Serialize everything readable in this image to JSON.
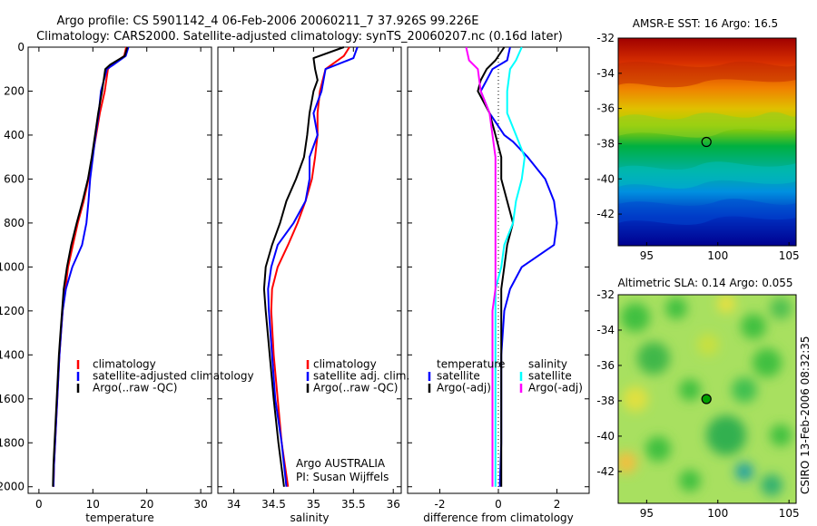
{
  "title_line1": "Argo profile: CS 5901142_4 06-Feb-2006 20060211_7 37.926S 99.226E",
  "title_line2": "Climatology: CARS2000. Satellite-adjusted climatology: synTS_20060207.nc (0.16d later)",
  "credit": "Argo AUSTRALIA",
  "pi": "PI: Susan Wijffels",
  "side_stamp": "CSIRO 13-Feb-2006 08:32:35",
  "colors": {
    "climatology": "#ff0000",
    "satellite": "#0000ff",
    "argo": "#000000",
    "sat_sal": "#00ffff",
    "argo_sal": "#ff00ff"
  },
  "chart_data": [
    {
      "type": "line",
      "xlabel": "temperature",
      "ylim": [
        2030,
        0
      ],
      "xlim": [
        -2,
        32
      ],
      "xticks": [
        0,
        10,
        20,
        30
      ],
      "yticks": [
        0,
        200,
        400,
        600,
        800,
        1000,
        1200,
        1400,
        1600,
        1800,
        2000
      ],
      "legend": [
        "climatology",
        "satellite-adjusted climatology",
        "Argo(..raw -QC)"
      ],
      "series": [
        {
          "name": "climatology",
          "color": "#ff0000",
          "points": [
            [
              16.2,
              0
            ],
            [
              15.8,
              40
            ],
            [
              13.5,
              80
            ],
            [
              12.8,
              100
            ],
            [
              12.2,
              200
            ],
            [
              11.3,
              300
            ],
            [
              10.6,
              400
            ],
            [
              9.9,
              500
            ],
            [
              9.2,
              600
            ],
            [
              8.3,
              700
            ],
            [
              7.2,
              800
            ],
            [
              6.3,
              900
            ],
            [
              5.4,
              1000
            ],
            [
              4.9,
              1100
            ],
            [
              4.4,
              1200
            ],
            [
              4.1,
              1300
            ],
            [
              3.8,
              1400
            ],
            [
              3.6,
              1500
            ],
            [
              3.4,
              1600
            ],
            [
              3.2,
              1700
            ],
            [
              3.0,
              1800
            ],
            [
              2.8,
              1900
            ],
            [
              2.7,
              2000
            ]
          ]
        },
        {
          "name": "satellite-adjusted climatology",
          "color": "#0000ff",
          "points": [
            [
              16.6,
              0
            ],
            [
              16.1,
              40
            ],
            [
              13.8,
              80
            ],
            [
              12.6,
              100
            ],
            [
              11.5,
              200
            ],
            [
              11.1,
              300
            ],
            [
              10.5,
              400
            ],
            [
              10.0,
              500
            ],
            [
              9.5,
              600
            ],
            [
              9.2,
              700
            ],
            [
              8.8,
              800
            ],
            [
              8.0,
              900
            ],
            [
              6.2,
              1000
            ],
            [
              5.0,
              1100
            ],
            [
              4.4,
              1200
            ],
            [
              4.1,
              1300
            ],
            [
              3.8,
              1400
            ],
            [
              3.6,
              1500
            ],
            [
              3.4,
              1600
            ],
            [
              3.2,
              1700
            ],
            [
              3.0,
              1800
            ],
            [
              2.8,
              1900
            ],
            [
              2.7,
              2000
            ]
          ]
        },
        {
          "name": "Argo(..raw -QC)",
          "color": "#000000",
          "points": [
            [
              16.4,
              0
            ],
            [
              15.9,
              40
            ],
            [
              13.2,
              80
            ],
            [
              12.3,
              100
            ],
            [
              11.7,
              200
            ],
            [
              11.0,
              300
            ],
            [
              10.4,
              400
            ],
            [
              9.8,
              500
            ],
            [
              9.1,
              600
            ],
            [
              8.1,
              700
            ],
            [
              7.0,
              800
            ],
            [
              6.0,
              900
            ],
            [
              5.2,
              1000
            ],
            [
              4.6,
              1100
            ],
            [
              4.3,
              1200
            ],
            [
              4.0,
              1300
            ],
            [
              3.7,
              1400
            ],
            [
              3.5,
              1500
            ],
            [
              3.3,
              1600
            ],
            [
              3.1,
              1700
            ],
            [
              2.9,
              1800
            ],
            [
              2.7,
              1900
            ],
            [
              2.6,
              2000
            ]
          ]
        }
      ]
    },
    {
      "type": "line",
      "xlabel": "salinity",
      "ylim": [
        2030,
        0
      ],
      "xlim": [
        33.8,
        36.1
      ],
      "xticks": [
        34,
        34.5,
        35,
        35.5,
        36
      ],
      "tick_labels": [
        "34",
        "34.5",
        "35",
        "35.5",
        "36"
      ],
      "legend": [
        "climatology",
        "satellite adj. clim.",
        "Argo(..raw -QC)"
      ],
      "series": [
        {
          "name": "climatology",
          "color": "#ff0000",
          "points": [
            [
              35.45,
              0
            ],
            [
              35.38,
              40
            ],
            [
              35.15,
              100
            ],
            [
              35.08,
              200
            ],
            [
              35.05,
              300
            ],
            [
              35.05,
              400
            ],
            [
              35.02,
              500
            ],
            [
              34.98,
              600
            ],
            [
              34.9,
              700
            ],
            [
              34.8,
              800
            ],
            [
              34.68,
              900
            ],
            [
              34.55,
              1000
            ],
            [
              34.48,
              1100
            ],
            [
              34.47,
              1200
            ],
            [
              34.5,
              1400
            ],
            [
              34.55,
              1600
            ],
            [
              34.6,
              1800
            ],
            [
              34.68,
              2000
            ]
          ]
        },
        {
          "name": "satellite adj. clim.",
          "color": "#0000ff",
          "points": [
            [
              35.55,
              0
            ],
            [
              35.5,
              50
            ],
            [
              35.15,
              100
            ],
            [
              35.1,
              200
            ],
            [
              35.0,
              300
            ],
            [
              35.05,
              400
            ],
            [
              34.95,
              500
            ],
            [
              34.95,
              600
            ],
            [
              34.9,
              700
            ],
            [
              34.75,
              800
            ],
            [
              34.55,
              900
            ],
            [
              34.47,
              1000
            ],
            [
              34.43,
              1100
            ],
            [
              34.44,
              1200
            ],
            [
              34.48,
              1400
            ],
            [
              34.52,
              1600
            ],
            [
              34.6,
              1800
            ],
            [
              34.66,
              2000
            ]
          ]
        },
        {
          "name": "Argo(..raw -QC)",
          "color": "#000000",
          "points": [
            [
              35.38,
              0
            ],
            [
              35.0,
              50
            ],
            [
              35.02,
              100
            ],
            [
              35.05,
              150
            ],
            [
              35.0,
              200
            ],
            [
              34.95,
              300
            ],
            [
              34.92,
              400
            ],
            [
              34.88,
              500
            ],
            [
              34.78,
              600
            ],
            [
              34.66,
              700
            ],
            [
              34.58,
              800
            ],
            [
              34.48,
              900
            ],
            [
              34.4,
              1000
            ],
            [
              34.38,
              1100
            ],
            [
              34.4,
              1200
            ],
            [
              34.45,
              1400
            ],
            [
              34.5,
              1600
            ],
            [
              34.56,
              1800
            ],
            [
              34.63,
              2000
            ]
          ]
        }
      ]
    },
    {
      "type": "line",
      "xlabel": "difference from climatology",
      "ylim": [
        2030,
        0
      ],
      "xlim": [
        -3.1,
        3.1
      ],
      "xticks": [
        -2,
        0,
        2
      ],
      "legend_groups": {
        "temperature": [
          "satellite",
          "Argo(-adj)"
        ],
        "salinity": [
          "satellite",
          "Argo(-adj)"
        ]
      },
      "series": [
        {
          "name": "temperature satellite",
          "color": "#0000ff",
          "points": [
            [
              0.4,
              0
            ],
            [
              0.3,
              60
            ],
            [
              -0.2,
              100
            ],
            [
              -0.4,
              150
            ],
            [
              -0.6,
              200
            ],
            [
              -0.3,
              300
            ],
            [
              0.2,
              400
            ],
            [
              0.5,
              430
            ],
            [
              1.0,
              500
            ],
            [
              1.6,
              600
            ],
            [
              1.9,
              700
            ],
            [
              2.0,
              800
            ],
            [
              1.9,
              900
            ],
            [
              0.8,
              1000
            ],
            [
              0.4,
              1100
            ],
            [
              0.2,
              1200
            ],
            [
              0.1,
              1400
            ],
            [
              0.1,
              1600
            ],
            [
              0.1,
              1800
            ],
            [
              0.05,
              2000
            ]
          ]
        },
        {
          "name": "temperature Argo(-adj)",
          "color": "#000000",
          "points": [
            [
              0.2,
              0
            ],
            [
              -0.1,
              60
            ],
            [
              -0.4,
              100
            ],
            [
              -0.6,
              150
            ],
            [
              -0.7,
              200
            ],
            [
              -0.3,
              300
            ],
            [
              -0.1,
              400
            ],
            [
              0.1,
              500
            ],
            [
              0.1,
              600
            ],
            [
              0.3,
              700
            ],
            [
              0.5,
              800
            ],
            [
              0.3,
              900
            ],
            [
              0.2,
              1000
            ],
            [
              0.1,
              1100
            ],
            [
              0.1,
              1200
            ],
            [
              0.1,
              1400
            ],
            [
              0.1,
              1600
            ],
            [
              0.1,
              1800
            ],
            [
              0.1,
              2000
            ]
          ]
        },
        {
          "name": "salinity satellite",
          "color": "#00ffff",
          "points": [
            [
              0.8,
              0
            ],
            [
              0.6,
              60
            ],
            [
              0.4,
              100
            ],
            [
              0.3,
              200
            ],
            [
              0.3,
              300
            ],
            [
              0.6,
              400
            ],
            [
              0.9,
              500
            ],
            [
              0.8,
              600
            ],
            [
              0.6,
              700
            ],
            [
              0.5,
              800
            ],
            [
              0.2,
              900
            ],
            [
              0.1,
              1000
            ],
            [
              -0.1,
              1100
            ],
            [
              -0.1,
              1200
            ],
            [
              -0.1,
              1400
            ],
            [
              -0.1,
              1600
            ],
            [
              -0.1,
              1800
            ],
            [
              -0.1,
              2000
            ]
          ]
        },
        {
          "name": "salinity Argo(-adj)",
          "color": "#ff00ff",
          "points": [
            [
              -1.1,
              0
            ],
            [
              -1.0,
              60
            ],
            [
              -0.7,
              100
            ],
            [
              -0.6,
              200
            ],
            [
              -0.3,
              300
            ],
            [
              -0.2,
              400
            ],
            [
              -0.1,
              500
            ],
            [
              -0.1,
              600
            ],
            [
              -0.1,
              700
            ],
            [
              -0.1,
              800
            ],
            [
              -0.1,
              900
            ],
            [
              -0.1,
              1000
            ],
            [
              -0.1,
              1100
            ],
            [
              -0.2,
              1200
            ],
            [
              -0.2,
              1400
            ],
            [
              -0.2,
              1600
            ],
            [
              -0.2,
              1800
            ],
            [
              -0.2,
              2000
            ]
          ]
        }
      ]
    },
    {
      "type": "heatmap",
      "title": "AMSR-E SST: 16 Argo: 16.5",
      "xlim": [
        93,
        105.5
      ],
      "ylim": [
        -43.8,
        -32
      ],
      "xticks": [
        95,
        100,
        105
      ],
      "yticks": [
        -32,
        -34,
        -36,
        -38,
        -40,
        -42
      ],
      "marker": {
        "lon": 99.2,
        "lat": -37.9
      }
    },
    {
      "type": "heatmap",
      "title": "Altimetric SLA: 0.14 Argo: 0.055",
      "xlim": [
        93,
        105.5
      ],
      "ylim": [
        -43.8,
        -32
      ],
      "xticks": [
        95,
        100,
        105
      ],
      "yticks": [
        -32,
        -34,
        -36,
        -38,
        -40,
        -42
      ],
      "marker": {
        "lon": 99.2,
        "lat": -37.9
      }
    }
  ]
}
